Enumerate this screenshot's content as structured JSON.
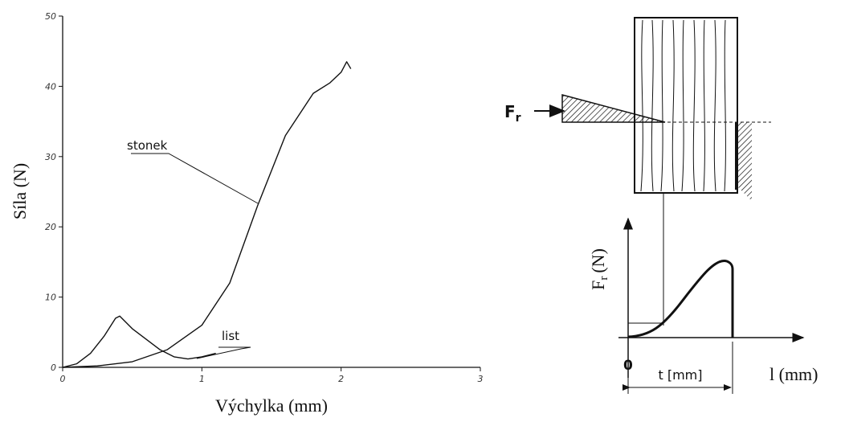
{
  "chart_data": {
    "type": "line",
    "y_label": "Síla (N)",
    "x_label": "Výchylka (mm)",
    "xlim": [
      0,
      3
    ],
    "xticks": [
      0,
      1,
      2,
      3
    ],
    "ylim": [
      0,
      50
    ],
    "yticks": [
      0,
      10,
      20,
      30,
      40,
      50
    ],
    "color": "#111111",
    "series": [
      {
        "name": "stonek",
        "x": [
          0,
          0.25,
          0.5,
          0.75,
          1.0,
          1.2,
          1.4,
          1.6,
          1.8,
          1.92,
          2.0,
          2.04,
          2.07
        ],
        "values": [
          0,
          0.2,
          0.8,
          2.5,
          6,
          12,
          23,
          33,
          39,
          40.5,
          42,
          43.5,
          42.5
        ]
      },
      {
        "name": "list",
        "x": [
          0,
          0.1,
          0.2,
          0.3,
          0.38,
          0.41,
          0.5,
          0.6,
          0.7,
          0.8,
          0.9,
          1.0,
          1.1
        ],
        "values": [
          0,
          0.5,
          2,
          4.5,
          7,
          7.3,
          5.5,
          4,
          2.5,
          1.5,
          1.2,
          1.5,
          2
        ]
      }
    ]
  },
  "diagram": {
    "force_label": "F",
    "force_sub": "r",
    "y_axis_label": "F",
    "y_axis_sub": "r",
    "y_axis_unit": "(N)",
    "origin": "0",
    "t_label": "t [mm]",
    "x_axis_label": "l (mm)"
  }
}
